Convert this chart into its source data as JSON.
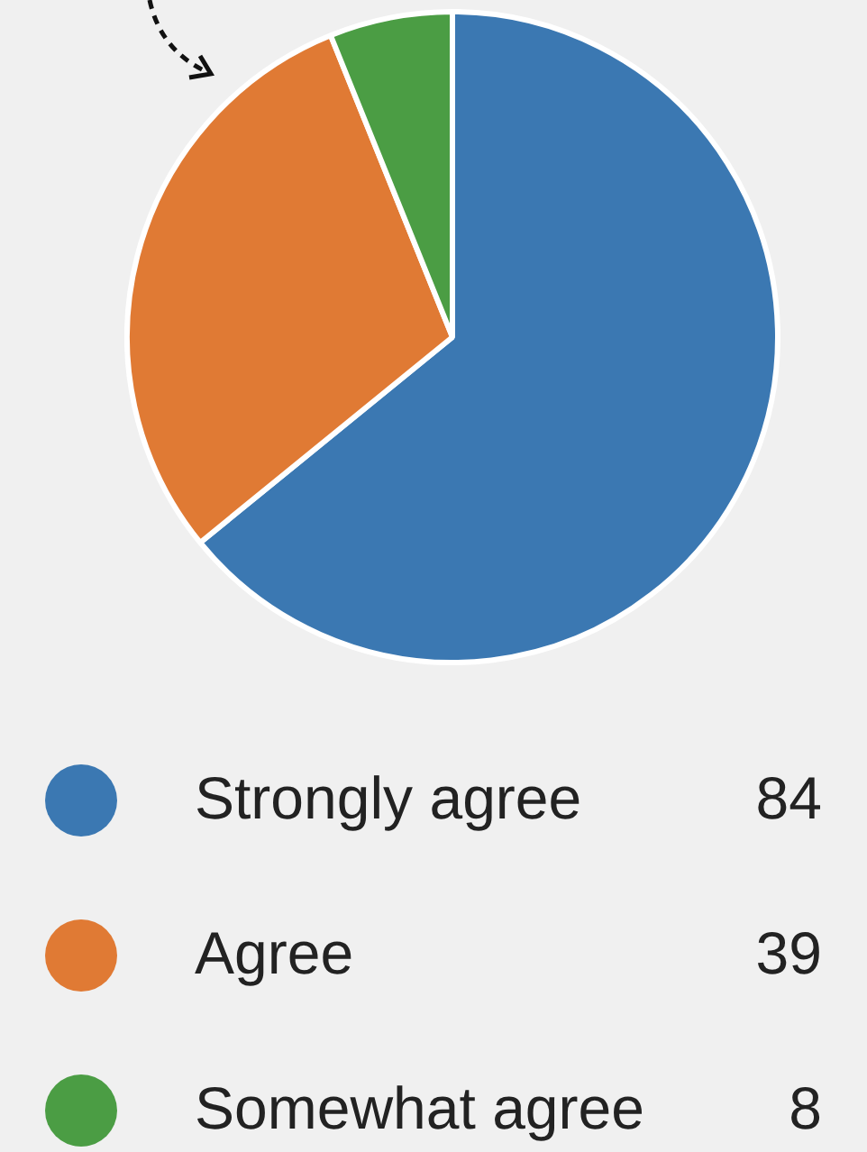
{
  "chart_data": {
    "type": "pie",
    "categories": [
      "Strongly agree",
      "Agree",
      "Somewhat agree"
    ],
    "values": [
      84,
      39,
      8
    ],
    "colors": [
      "#3b78b2",
      "#e07a34",
      "#4b9d44"
    ],
    "legend": "bottom",
    "data_labels": true
  }
}
